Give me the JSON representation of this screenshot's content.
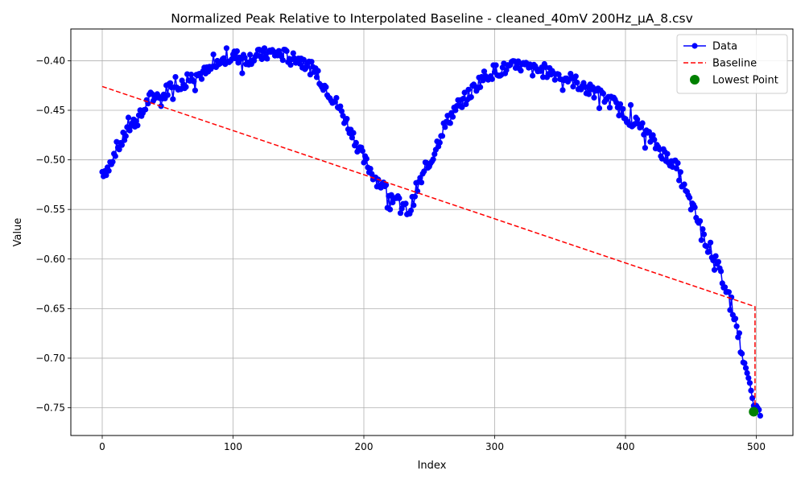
{
  "chart_data": {
    "type": "line",
    "title": "Normalized Peak Relative to Interpolated Baseline - cleaned_40mV 200Hz_µA_8.csv",
    "xlabel": "Index",
    "ylabel": "Value",
    "xlim": [
      -24,
      528
    ],
    "ylim": [
      -0.778,
      -0.368
    ],
    "xticks": [
      0,
      100,
      200,
      300,
      400,
      500
    ],
    "yticks": [
      -0.75,
      -0.7,
      -0.65,
      -0.6,
      -0.55,
      -0.5,
      -0.45,
      -0.4
    ],
    "grid": true,
    "legend_position": "top-right",
    "colors": {
      "data": "#0000ff",
      "baseline": "#ff0000",
      "lowest": "#008000"
    },
    "series": [
      {
        "name": "Data",
        "style": "line-with-markers",
        "anchors": [
          [
            0,
            -0.512
          ],
          [
            5,
            -0.508
          ],
          [
            10,
            -0.49
          ],
          [
            15,
            -0.482
          ],
          [
            20,
            -0.468
          ],
          [
            30,
            -0.455
          ],
          [
            35,
            -0.44
          ],
          [
            40,
            -0.435
          ],
          [
            45,
            -0.44
          ],
          [
            50,
            -0.428
          ],
          [
            55,
            -0.42
          ],
          [
            60,
            -0.425
          ],
          [
            70,
            -0.415
          ],
          [
            80,
            -0.412
          ],
          [
            90,
            -0.402
          ],
          [
            100,
            -0.395
          ],
          [
            110,
            -0.398
          ],
          [
            120,
            -0.395
          ],
          [
            130,
            -0.392
          ],
          [
            140,
            -0.395
          ],
          [
            150,
            -0.398
          ],
          [
            160,
            -0.408
          ],
          [
            170,
            -0.425
          ],
          [
            180,
            -0.445
          ],
          [
            190,
            -0.47
          ],
          [
            200,
            -0.5
          ],
          [
            210,
            -0.52
          ],
          [
            220,
            -0.535
          ],
          [
            230,
            -0.548
          ],
          [
            235,
            -0.552
          ],
          [
            240,
            -0.53
          ],
          [
            250,
            -0.505
          ],
          [
            260,
            -0.47
          ],
          [
            270,
            -0.448
          ],
          [
            280,
            -0.435
          ],
          [
            290,
            -0.418
          ],
          [
            300,
            -0.41
          ],
          [
            310,
            -0.408
          ],
          [
            320,
            -0.405
          ],
          [
            330,
            -0.41
          ],
          [
            340,
            -0.41
          ],
          [
            350,
            -0.415
          ],
          [
            360,
            -0.42
          ],
          [
            370,
            -0.428
          ],
          [
            380,
            -0.435
          ],
          [
            390,
            -0.442
          ],
          [
            400,
            -0.455
          ],
          [
            410,
            -0.465
          ],
          [
            420,
            -0.48
          ],
          [
            430,
            -0.495
          ],
          [
            440,
            -0.51
          ],
          [
            445,
            -0.53
          ],
          [
            450,
            -0.545
          ],
          [
            455,
            -0.56
          ],
          [
            460,
            -0.578
          ],
          [
            465,
            -0.59
          ],
          [
            470,
            -0.605
          ],
          [
            475,
            -0.625
          ],
          [
            480,
            -0.64
          ],
          [
            485,
            -0.668
          ],
          [
            490,
            -0.7
          ],
          [
            495,
            -0.725
          ],
          [
            498,
            -0.748
          ],
          [
            500,
            -0.748
          ],
          [
            502,
            -0.752
          ],
          [
            503,
            -0.758
          ]
        ],
        "noise_amplitude": 0.007
      },
      {
        "name": "Baseline",
        "style": "dashed",
        "points": [
          [
            0,
            -0.426
          ],
          [
            499,
            -0.648
          ],
          [
            499,
            -0.754
          ]
        ]
      },
      {
        "name": "Lowest Point",
        "style": "marker",
        "points": [
          [
            498,
            -0.754
          ]
        ]
      }
    ]
  }
}
